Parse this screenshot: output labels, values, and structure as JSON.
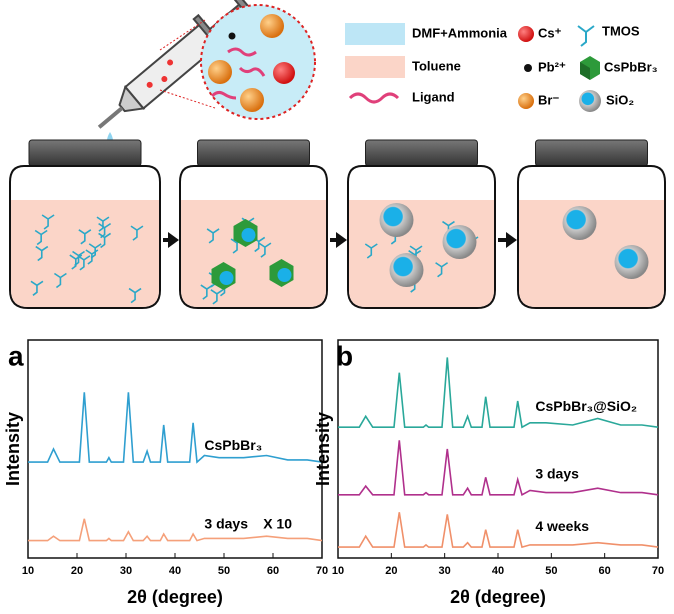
{
  "schematic": {
    "legend": [
      "DMF+Ammonia",
      "Toluene",
      "Ligand",
      "Cs⁺",
      "Pb²⁺",
      "Br⁻",
      "TMOS",
      "CsPbBr₃",
      "SiO₂"
    ]
  },
  "chart_data": [
    {
      "type": "line",
      "panel_label": "a",
      "ylabel": "Intensity",
      "xlabel": "2θ (degree)",
      "xlim": [
        10,
        70
      ],
      "xticks": [
        10,
        20,
        30,
        40,
        50,
        60,
        70
      ],
      "ylim": [
        0,
        100
      ],
      "annotation": "X 10",
      "x": [
        10,
        14,
        15.2,
        16.5,
        20.5,
        21.5,
        22.5,
        26,
        26.5,
        27,
        29.5,
        30.5,
        31.5,
        33.5,
        34.3,
        35,
        37,
        37.7,
        38.5,
        43,
        43.7,
        44.5,
        46,
        49,
        54,
        58.7,
        63,
        67,
        70
      ],
      "series": [
        {
          "name": "CsPbBr₃",
          "color": "#2f9fd0",
          "values": [
            44,
            44,
            50,
            44,
            44,
            76,
            44,
            44,
            46,
            44,
            44,
            76,
            44,
            44,
            49,
            44,
            44,
            61,
            44,
            44,
            62,
            44,
            47,
            46,
            46,
            47,
            45,
            45,
            44
          ]
        },
        {
          "name": "3 days",
          "color": "#f5a07a",
          "values": [
            8,
            8,
            10,
            8,
            8,
            18,
            8,
            8,
            9,
            8,
            8,
            12,
            8,
            8,
            10,
            8,
            8,
            11,
            8,
            8,
            11,
            8,
            9,
            9,
            9,
            10,
            9,
            9,
            8
          ]
        }
      ]
    },
    {
      "type": "line",
      "panel_label": "b",
      "ylabel": "Intensity",
      "xlabel": "2θ (degree)",
      "xlim": [
        10,
        70
      ],
      "xticks": [
        10,
        20,
        30,
        40,
        50,
        60,
        70
      ],
      "ylim": [
        0,
        100
      ],
      "x": [
        10,
        14,
        15.2,
        16.5,
        20.5,
        21.5,
        22.5,
        26,
        26.5,
        27,
        29.5,
        30.5,
        31.5,
        33.5,
        34.3,
        35,
        37,
        37.7,
        38.5,
        43,
        43.7,
        44.5,
        46,
        49,
        54,
        58.7,
        63,
        67,
        70
      ],
      "series": [
        {
          "name": "CsPbBr₃@SiO₂",
          "color": "#2aa89a",
          "values": [
            60,
            60,
            65,
            60,
            60,
            85,
            60,
            60,
            61,
            60,
            60,
            92,
            60,
            60,
            65,
            60,
            60,
            74,
            60,
            60,
            72,
            60,
            62,
            62,
            61,
            64,
            61,
            61,
            60
          ]
        },
        {
          "name": "3 days",
          "color": "#b0308c",
          "values": [
            29,
            29,
            33,
            29,
            29,
            54,
            29,
            29,
            30,
            29,
            29,
            50,
            29,
            29,
            32,
            29,
            29,
            37,
            29,
            29,
            36,
            29,
            31,
            30,
            30,
            32,
            30,
            30,
            29
          ]
        },
        {
          "name": "4 weeks",
          "color": "#f0906a",
          "values": [
            5,
            5,
            10,
            5,
            5,
            21,
            5,
            5,
            6,
            5,
            5,
            20,
            5,
            5,
            7,
            5,
            5,
            13,
            5,
            5,
            13,
            5,
            6,
            6,
            6,
            7,
            6,
            6,
            5
          ]
        }
      ]
    }
  ]
}
